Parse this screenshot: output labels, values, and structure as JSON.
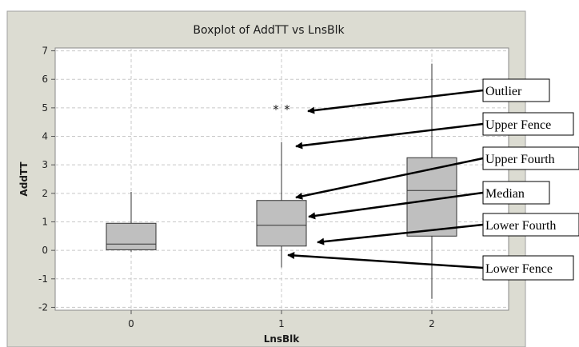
{
  "chart_data": {
    "type": "boxplot",
    "title": "Boxplot of AddTT vs LnsBlk",
    "xlabel": "LnsBlk",
    "ylabel": "AddTT",
    "categories": [
      "0",
      "1",
      "2"
    ],
    "ylim": [
      -2.1,
      7.1
    ],
    "yticks": [
      -2,
      -1,
      0,
      1,
      2,
      3,
      4,
      5,
      6,
      7
    ],
    "ytick_labels": [
      "-2",
      "-1",
      "0",
      "1",
      "2",
      "3",
      "4",
      "5",
      "6",
      "7"
    ],
    "grid": true,
    "boxes": [
      {
        "category": "0",
        "whisker_low": -0.05,
        "q1": 0.02,
        "median": 0.22,
        "q3": 0.95,
        "whisker_high": 2.05,
        "outliers": []
      },
      {
        "category": "1",
        "whisker_low": -0.6,
        "q1": 0.15,
        "median": 0.88,
        "q3": 1.75,
        "whisker_high": 3.8,
        "outliers": [
          5.0,
          5.0
        ]
      },
      {
        "category": "2",
        "whisker_low": -1.7,
        "q1": 0.5,
        "median": 2.1,
        "q3": 3.25,
        "whisker_high": 6.55,
        "outliers": []
      }
    ],
    "annotations": [
      {
        "label": "Outlier",
        "target": {
          "category": "1",
          "value": 5.0
        }
      },
      {
        "label": "Upper Fence",
        "target": {
          "category": "1",
          "value": 3.8
        }
      },
      {
        "label": "Upper Fourth",
        "target": {
          "category": "1",
          "value": 1.75
        }
      },
      {
        "label": "Median",
        "target": {
          "category": "1",
          "value": 0.88
        }
      },
      {
        "label": "Lower Fourth",
        "target": {
          "category": "1",
          "value": 0.15
        }
      },
      {
        "label": "Lower Fence",
        "target": {
          "category": "1",
          "value": -0.6
        }
      }
    ],
    "colors": {
      "frame_background": "#dcdcd2",
      "plot_background": "#ffffff",
      "box_fill": "#bfbfbf",
      "stroke": "#333333",
      "grid": "#c8c8c8"
    }
  }
}
